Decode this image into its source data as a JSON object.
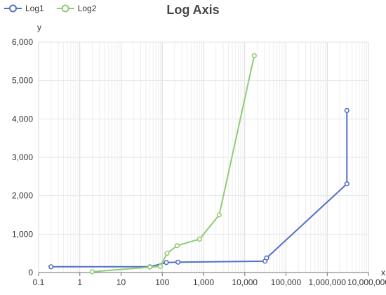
{
  "chart_data": {
    "type": "line",
    "title": "Log Axis",
    "xlabel": "x",
    "ylabel": "y",
    "x_scale": "log",
    "xlim": [
      0.1,
      10000000
    ],
    "ylim": [
      0,
      6000
    ],
    "x_ticks": [
      0.1,
      1,
      10,
      100,
      1000,
      10000,
      100000,
      1000000,
      10000000
    ],
    "x_tick_labels": [
      "0.1",
      "1",
      "10",
      "100",
      "1,000",
      "10,000",
      "100,000",
      "1,000,000",
      "10,000,000"
    ],
    "y_ticks": [
      0,
      1000,
      2000,
      3000,
      4000,
      5000,
      6000
    ],
    "y_tick_labels": [
      "0",
      "1,000",
      "2,000",
      "3,000",
      "4,000",
      "5,000",
      "6,000"
    ],
    "grid": true,
    "legend_position": "top-left",
    "series": [
      {
        "name": "Log1",
        "color": "#5470c6",
        "points": [
          {
            "x": 0.2,
            "y": 150
          },
          {
            "x": 50,
            "y": 150
          },
          {
            "x": 125,
            "y": 260
          },
          {
            "x": 240,
            "y": 270
          },
          {
            "x": 31000,
            "y": 295
          },
          {
            "x": 34000,
            "y": 380
          },
          {
            "x": 3000000,
            "y": 2310
          },
          {
            "x": 3000000,
            "y": 4220
          }
        ]
      },
      {
        "name": "Log2",
        "color": "#91cc75",
        "points": [
          {
            "x": 2,
            "y": 20
          },
          {
            "x": 50,
            "y": 140
          },
          {
            "x": 90,
            "y": 160
          },
          {
            "x": 130,
            "y": 500
          },
          {
            "x": 230,
            "y": 700
          },
          {
            "x": 800,
            "y": 870
          },
          {
            "x": 2400,
            "y": 1500
          },
          {
            "x": 17000,
            "y": 5650
          }
        ]
      }
    ]
  }
}
